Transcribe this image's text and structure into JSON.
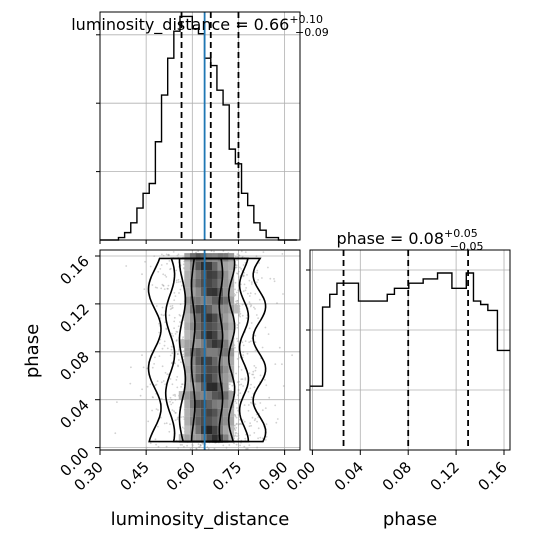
{
  "chart_data": {
    "type": "corner",
    "parameters": [
      "luminosity_distance",
      "phase"
    ],
    "truth": {
      "luminosity_distance": 0.64
    },
    "axis_labels": {
      "x_bottom_left": "luminosity_distance",
      "x_bottom_right": "phase",
      "y_left": "phase"
    },
    "ticks": {
      "luminosity_distance": [
        "0.30",
        "0.45",
        "0.60",
        "0.75",
        "0.90"
      ],
      "phase": [
        "0.00",
        "0.04",
        "0.08",
        "0.12",
        "0.16"
      ]
    },
    "ranges": {
      "luminosity_distance": [
        0.3,
        0.95
      ],
      "phase": [
        -0.002,
        0.165
      ]
    },
    "grid": true,
    "marginals": [
      {
        "param": "luminosity_distance",
        "title": {
          "prefix": "luminosity_distance = 0.66",
          "sup": "+0.10",
          "sub": "−0.09"
        },
        "quantiles": [
          0.565,
          0.66,
          0.75
        ],
        "bin_edges": [
          0.3,
          0.32,
          0.34,
          0.36,
          0.38,
          0.4,
          0.42,
          0.44,
          0.46,
          0.48,
          0.5,
          0.52,
          0.54,
          0.56,
          0.58,
          0.6,
          0.62,
          0.64,
          0.66,
          0.68,
          0.7,
          0.72,
          0.74,
          0.76,
          0.78,
          0.8,
          0.82,
          0.84,
          0.86,
          0.88,
          0.9,
          0.92,
          0.94
        ],
        "counts": [
          0,
          0,
          0,
          1,
          3,
          7,
          13,
          19,
          23,
          40,
          59,
          74,
          85,
          91,
          91,
          86,
          84,
          74,
          71,
          61,
          55,
          37,
          31,
          19,
          14,
          7,
          4,
          1,
          1,
          0,
          0,
          0
        ]
      },
      {
        "param": "phase",
        "title": {
          "prefix": "phase = 0.08",
          "sup": "+0.05",
          "sub": "−0.05"
        },
        "quantiles": [
          0.026,
          0.08,
          0.13
        ],
        "bin_edges": [
          -0.002,
          0.0015,
          0.0085,
          0.0145,
          0.0205,
          0.0265,
          0.0325,
          0.0385,
          0.0445,
          0.0505,
          0.0565,
          0.0625,
          0.0685,
          0.0745,
          0.0805,
          0.0865,
          0.0925,
          0.0985,
          0.1045,
          0.1105,
          0.1165,
          0.1225,
          0.1285,
          0.1345,
          0.1405,
          0.1465,
          0.1545,
          0.1615,
          0.1651
        ],
        "counts": [
          75,
          75,
          168,
          183,
          196,
          196,
          196,
          175,
          175,
          175,
          175,
          183,
          190,
          190,
          196,
          196,
          201,
          201,
          208,
          208,
          190,
          190,
          208,
          175,
          171,
          164,
          117,
          117
        ]
      }
    ],
    "joint": {
      "x_param": "luminosity_distance",
      "y_param": "phase",
      "contour_levels": 4
    }
  }
}
